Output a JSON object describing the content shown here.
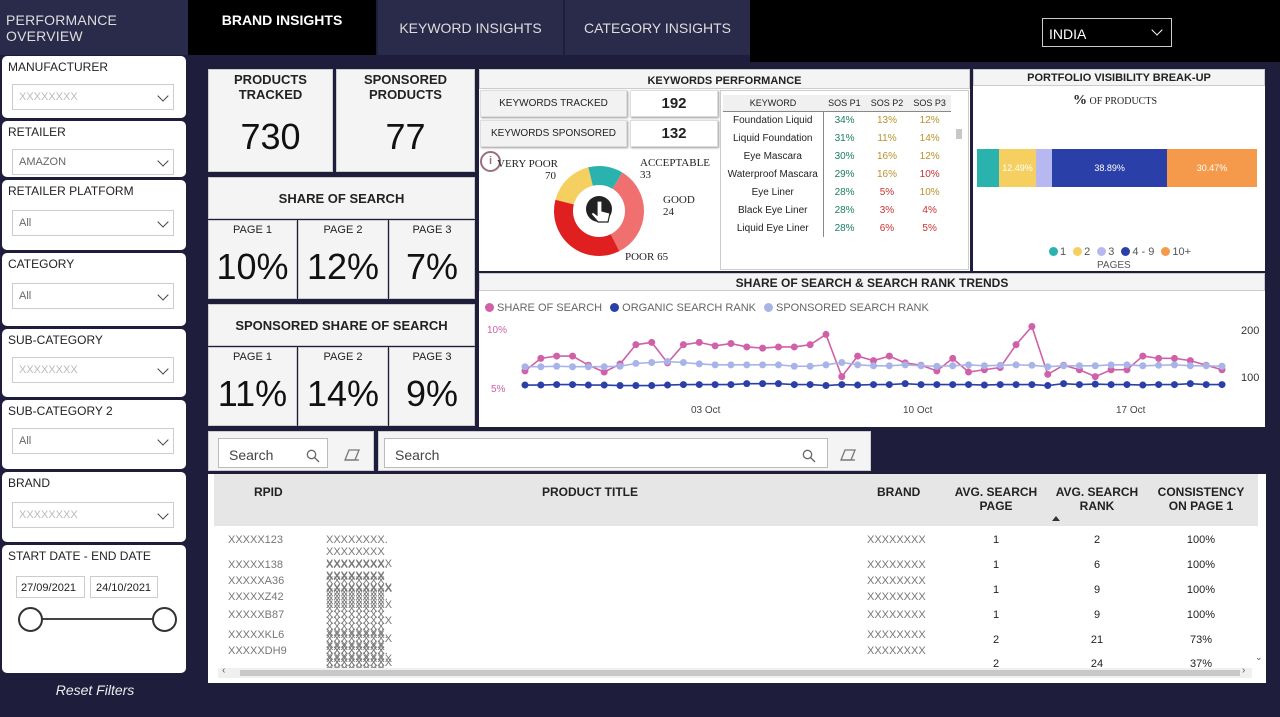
{
  "sidebar": {
    "title": "PERFORMANCE OVERVIEW",
    "filters": [
      {
        "label": "MANUFACTURER",
        "value": "XXXXXXXX"
      },
      {
        "label": "RETAILER",
        "value": "AMAZON"
      },
      {
        "label": "RETAILER PLATFORM",
        "value": "All"
      },
      {
        "label": "CATEGORY",
        "value": "All"
      },
      {
        "label": "SUB-CATEGORY",
        "value": "XXXXXXXX"
      },
      {
        "label": "SUB-CATEGORY 2",
        "value": "All"
      },
      {
        "label": "BRAND",
        "value": "XXXXXXXX"
      }
    ],
    "date": {
      "label": "START DATE - END DATE",
      "start": "27/09/2021",
      "end": "24/10/2021"
    },
    "reset": "Reset Filters"
  },
  "tabs": [
    "BRAND INSIGHTS",
    "KEYWORD INSIGHTS",
    "CATEGORY INSIGHTS"
  ],
  "country": "INDIA",
  "kpis": {
    "products_tracked": {
      "label": "PRODUCTS TRACKED",
      "value": "730"
    },
    "sponsored_products": {
      "label": "SPONSORED PRODUCTS",
      "value": "77"
    }
  },
  "share_of_search": {
    "title": "SHARE OF SEARCH",
    "pages": [
      {
        "label": "PAGE 1",
        "value": "10%"
      },
      {
        "label": "PAGE 2",
        "value": "12%"
      },
      {
        "label": "PAGE 3",
        "value": "7%"
      }
    ]
  },
  "sponsored_share": {
    "title": "SPONSORED SHARE OF SEARCH",
    "pages": [
      {
        "label": "PAGE 1",
        "value": "11%"
      },
      {
        "label": "PAGE 2",
        "value": "14%"
      },
      {
        "label": "PAGE 3",
        "value": "9%"
      }
    ]
  },
  "keywords": {
    "title": "KEYWORDS PERFORMANCE",
    "tracked_label": "KEYWORDS TRACKED",
    "tracked": "192",
    "sponsored_label": "KEYWORDS SPONSORED",
    "sponsored": "132",
    "donut": [
      {
        "name": "VERY POOR",
        "value": "70",
        "color": "#e02020"
      },
      {
        "name": "ACCEPTABLE",
        "value": "33",
        "color": "#f5d060"
      },
      {
        "name": "GOOD",
        "value": "24",
        "color": "#2ab3ae"
      },
      {
        "name": "POOR",
        "value": "65",
        "color": "#f07070"
      }
    ],
    "table_headers": [
      "KEYWORD",
      "SOS P1",
      "SOS P2",
      "SOS P3"
    ],
    "rows": [
      {
        "kw": "Foundation Liquid",
        "p1": "34%",
        "p2": "13%",
        "p3": "12%",
        "c1": "g",
        "c2": "y",
        "c3": "y"
      },
      {
        "kw": "Liquid Foundation",
        "p1": "31%",
        "p2": "11%",
        "p3": "14%",
        "c1": "g",
        "c2": "y",
        "c3": "y"
      },
      {
        "kw": "Eye Mascara",
        "p1": "30%",
        "p2": "16%",
        "p3": "12%",
        "c1": "g",
        "c2": "y",
        "c3": "y"
      },
      {
        "kw": "Waterproof Mascara",
        "p1": "29%",
        "p2": "16%",
        "p3": "10%",
        "c1": "g",
        "c2": "y",
        "c3": "r"
      },
      {
        "kw": "Eye Liner",
        "p1": "28%",
        "p2": "5%",
        "p3": "10%",
        "c1": "g",
        "c2": "r",
        "c3": "y"
      },
      {
        "kw": "Black Eye Liner",
        "p1": "28%",
        "p2": "3%",
        "p3": "4%",
        "c1": "g",
        "c2": "r",
        "c3": "r"
      },
      {
        "kw": "Liquid Eye Liner",
        "p1": "28%",
        "p2": "6%",
        "p3": "5%",
        "c1": "g",
        "c2": "r",
        "c3": "r"
      }
    ]
  },
  "portfolio": {
    "title": "PORTFOLIO VISIBILITY BREAK-UP",
    "subtitle_pct": "%",
    "subtitle": "OF PRODUCTS",
    "segments": [
      {
        "name": "1",
        "value": 7.5,
        "color": "#2ab3ae",
        "label": ""
      },
      {
        "name": "2",
        "value": 12.49,
        "color": "#f5d060",
        "label": "12.49%"
      },
      {
        "name": "3",
        "value": 5.5,
        "color": "#b8b8f0",
        "label": ""
      },
      {
        "name": "4 - 9",
        "value": 38.89,
        "color": "#2b3fa8",
        "label": "38.89%"
      },
      {
        "name": "10+",
        "value": 30.47,
        "color": "#f5994a",
        "label": "30.47%"
      }
    ],
    "legend_title": "PAGES"
  },
  "trend": {
    "title": "SHARE OF SEARCH & SEARCH RANK TRENDS",
    "legend": [
      {
        "name": "SHARE OF SEARCH",
        "color": "#d060a8"
      },
      {
        "name": "ORGANIC SEARCH RANK",
        "color": "#2b3fa8"
      },
      {
        "name": "SPONSORED SEARCH RANK",
        "color": "#a8b4e8"
      }
    ],
    "y_left": [
      "10%",
      "5%"
    ],
    "y_right": [
      "200",
      "100"
    ],
    "x_ticks": [
      "03 Oct",
      "10 Oct",
      "17 Oct"
    ]
  },
  "chart_data": {
    "type": "line",
    "title": "SHARE OF SEARCH & SEARCH RANK TRENDS",
    "x_ticks": [
      "03 Oct",
      "10 Oct",
      "17 Oct"
    ],
    "series": [
      {
        "name": "SHARE OF SEARCH",
        "axis": "left",
        "values": [
          6.5,
          7.6,
          7.8,
          7.8,
          7.0,
          6.4,
          7.1,
          8.8,
          9.0,
          7.2,
          8.8,
          9.0,
          8.7,
          8.9,
          8.6,
          8.5,
          8.6,
          8.6,
          8.8,
          9.7,
          6.0,
          7.8,
          7.4,
          7.8,
          7.2,
          7.0,
          6.5,
          7.6,
          6.4,
          6.6,
          6.8,
          8.8,
          10.4,
          6.2,
          7.0,
          6.6,
          6.0,
          6.6,
          6.6,
          7.8,
          7.6,
          7.6,
          7.4,
          7.0,
          6.6
        ]
      },
      {
        "name": "ORGANIC SEARCH RANK",
        "axis": "right",
        "values": [
          85,
          85,
          86,
          86,
          85,
          85,
          84,
          84,
          84,
          85,
          86,
          86,
          86,
          86,
          88,
          88,
          88,
          86,
          86,
          84,
          86,
          85,
          86,
          86,
          88,
          86,
          86,
          86,
          86,
          85,
          86,
          86,
          86,
          84,
          88,
          86,
          87,
          86,
          86,
          85,
          86,
          86,
          88,
          86,
          86
        ]
      },
      {
        "name": "SPONSORED SEARCH RANK",
        "axis": "right",
        "values": [
          124,
          124,
          125,
          124,
          124,
          124,
          125,
          131,
          133,
          135,
          133,
          130,
          128,
          128,
          128,
          128,
          128,
          125,
          125,
          128,
          133,
          128,
          126,
          126,
          128,
          126,
          125,
          126,
          128,
          126,
          127,
          128,
          127,
          124,
          126,
          126,
          126,
          128,
          128,
          126,
          127,
          128,
          126,
          126,
          125
        ]
      }
    ]
  },
  "search": {
    "left_placeholder": "Search",
    "right_placeholder": "Search"
  },
  "table": {
    "headers": [
      "RPID",
      "PRODUCT TITLE",
      "BRAND",
      "AVG. SEARCH PAGE",
      "AVG. SEARCH RANK",
      "CONSISTENCY ON PAGE 1"
    ],
    "rows": [
      {
        "rpid": "XXXXX123",
        "title": "XXXXXXXX. XXXXXXXX XXXXXXXXX XXXXXXXX XXXXXXXXX",
        "brand": "XXXXXXXX",
        "page": "1",
        "rank": "2",
        "cons": "100%"
      },
      {
        "rpid": "XXXXX138",
        "title": "XXXXXXXX. XXXXXXXX XXXXXXXXX XXXXXXXX",
        "brand": "XXXXXXXX",
        "page": "1",
        "rank": "6",
        "cons": "100%"
      },
      {
        "rpid": "XXXXXA36",
        "title": "XXXXXXXX. XXXXXXXX XXXXXXXXX",
        "brand": "XXXXXXXX",
        "page": "1",
        "rank": "9",
        "cons": "100%"
      },
      {
        "rpid": "XXXXXZ42",
        "title": "XXXXXXXX. XXXXXXXX XXXXXXXXX XXXXXXXX XXXXXXXX XXXXXXXX XXXXXXXX",
        "brand": "XXXXXXXX",
        "page": "1",
        "rank": "9",
        "cons": "100%"
      },
      {
        "rpid": "XXXXXB87",
        "title": "XXXXXXXX. XXXXXXXX XXXXXXXXX XXXXXXXX XXXXXXXXX",
        "brand": "XXXXXXXX",
        "page": "2",
        "rank": "21",
        "cons": "73%"
      },
      {
        "rpid": "XXXXXKL6",
        "title": "XXXXXXXX. XXXXXXXX XXXXXXXXX XXXXXXXX XXXXXXXXX",
        "brand": "XXXXXXXX",
        "page": "2",
        "rank": "24",
        "cons": "37%"
      },
      {
        "rpid": "XXXXXDH9",
        "title": "XXXXXXXX. XXXXXXXX XXXXXXXXX XXXXXXXX XXXXXXXXX",
        "brand": "XXXXXXXX",
        "page": "",
        "rank": "",
        "cons": ""
      }
    ]
  }
}
